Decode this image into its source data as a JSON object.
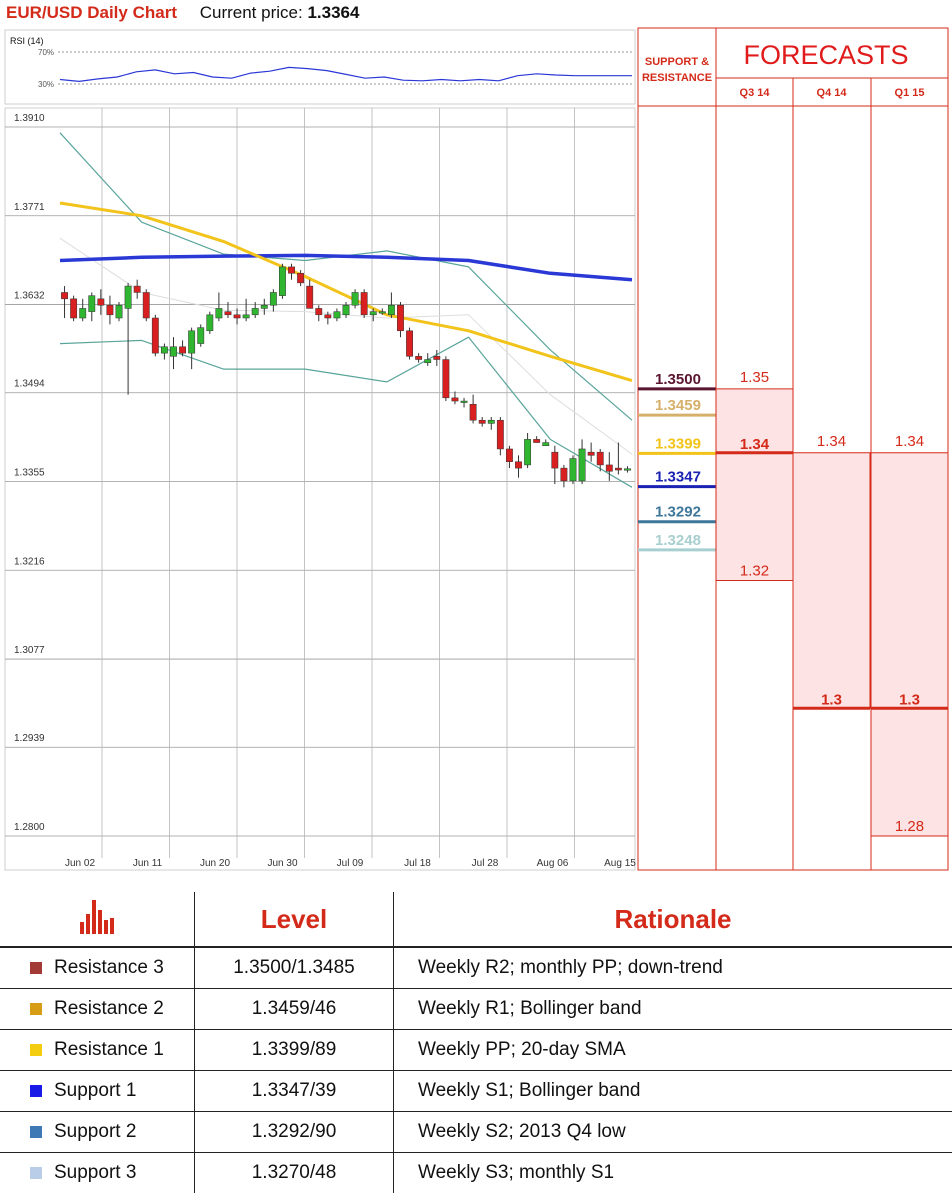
{
  "header": {
    "title": "EUR/USD Daily Chart",
    "current_label": "Current price:",
    "current_value": "1.3364"
  },
  "rsi": {
    "label": "RSI (14)",
    "upper_label": "70%",
    "lower_label": "30%"
  },
  "chart_data": {
    "type": "candlestick",
    "title": "EUR/USD Daily Chart",
    "y_ticks": [
      "1.3910",
      "1.3771",
      "1.3632",
      "1.3494",
      "1.3355",
      "1.3216",
      "1.3077",
      "1.2939",
      "1.2800"
    ],
    "ylim": [
      1.28,
      1.391
    ],
    "x_ticks": [
      "Jun 02",
      "Jun 11",
      "Jun 20",
      "Jun 30",
      "Jul 09",
      "Jul 18",
      "Jul 28",
      "Aug 06",
      "Aug 15"
    ],
    "candles": [
      [
        1.364,
        1.365,
        1.36,
        1.363
      ],
      [
        1.363,
        1.3635,
        1.3595,
        1.36
      ],
      [
        1.36,
        1.363,
        1.3595,
        1.3615
      ],
      [
        1.361,
        1.364,
        1.3595,
        1.3635
      ],
      [
        1.363,
        1.3645,
        1.3605,
        1.362
      ],
      [
        1.362,
        1.3635,
        1.359,
        1.3605
      ],
      [
        1.36,
        1.3625,
        1.3595,
        1.362
      ],
      [
        1.3615,
        1.3655,
        1.348,
        1.365
      ],
      [
        1.365,
        1.366,
        1.363,
        1.364
      ],
      [
        1.364,
        1.3645,
        1.3595,
        1.36
      ],
      [
        1.36,
        1.3605,
        1.354,
        1.3545
      ],
      [
        1.3545,
        1.356,
        1.3535,
        1.3555
      ],
      [
        1.354,
        1.357,
        1.352,
        1.3555
      ],
      [
        1.3555,
        1.3565,
        1.354,
        1.3545
      ],
      [
        1.3545,
        1.3585,
        1.352,
        1.358
      ],
      [
        1.356,
        1.359,
        1.3555,
        1.3585
      ],
      [
        1.358,
        1.361,
        1.3575,
        1.3605
      ],
      [
        1.36,
        1.364,
        1.3595,
        1.3615
      ],
      [
        1.361,
        1.3625,
        1.36,
        1.3605
      ],
      [
        1.3605,
        1.3615,
        1.359,
        1.36
      ],
      [
        1.36,
        1.363,
        1.3595,
        1.3605
      ],
      [
        1.3605,
        1.3625,
        1.36,
        1.3615
      ],
      [
        1.3615,
        1.363,
        1.3605,
        1.362
      ],
      [
        1.362,
        1.3645,
        1.361,
        1.364
      ],
      [
        1.3635,
        1.3685,
        1.363,
        1.368
      ],
      [
        1.368,
        1.3685,
        1.366,
        1.367
      ],
      [
        1.367,
        1.3675,
        1.365,
        1.3655
      ],
      [
        1.365,
        1.366,
        1.3615,
        1.3615
      ],
      [
        1.3615,
        1.362,
        1.3595,
        1.3605
      ],
      [
        1.3605,
        1.361,
        1.359,
        1.36
      ],
      [
        1.36,
        1.3615,
        1.3595,
        1.361
      ],
      [
        1.3605,
        1.3625,
        1.36,
        1.362
      ],
      [
        1.362,
        1.3645,
        1.3615,
        1.364
      ],
      [
        1.364,
        1.3645,
        1.36,
        1.3605
      ],
      [
        1.3605,
        1.3615,
        1.3595,
        1.361
      ],
      [
        1.361,
        1.3615,
        1.3605,
        1.361
      ],
      [
        1.3605,
        1.364,
        1.36,
        1.362
      ],
      [
        1.362,
        1.3625,
        1.357,
        1.358
      ],
      [
        1.358,
        1.3585,
        1.3535,
        1.354
      ],
      [
        1.354,
        1.3545,
        1.353,
        1.3535
      ],
      [
        1.353,
        1.3545,
        1.3525,
        1.3535
      ],
      [
        1.354,
        1.355,
        1.3525,
        1.3535
      ],
      [
        1.3535,
        1.354,
        1.347,
        1.3475
      ],
      [
        1.3475,
        1.3485,
        1.3465,
        1.347
      ],
      [
        1.347,
        1.3475,
        1.346,
        1.347
      ],
      [
        1.3465,
        1.348,
        1.3435,
        1.344
      ],
      [
        1.344,
        1.3445,
        1.343,
        1.3435
      ],
      [
        1.3435,
        1.3445,
        1.3425,
        1.344
      ],
      [
        1.344,
        1.3445,
        1.3385,
        1.3395
      ],
      [
        1.3395,
        1.34,
        1.3365,
        1.3375
      ],
      [
        1.3375,
        1.3385,
        1.335,
        1.3365
      ],
      [
        1.337,
        1.342,
        1.3365,
        1.341
      ],
      [
        1.341,
        1.3415,
        1.3405,
        1.3405
      ],
      [
        1.34,
        1.341,
        1.34,
        1.3405
      ],
      [
        1.339,
        1.34,
        1.334,
        1.3365
      ],
      [
        1.3365,
        1.337,
        1.3335,
        1.3345
      ],
      [
        1.3345,
        1.3385,
        1.334,
        1.338
      ],
      [
        1.3345,
        1.341,
        1.334,
        1.3395
      ],
      [
        1.339,
        1.3405,
        1.3375,
        1.3385
      ],
      [
        1.339,
        1.3395,
        1.336,
        1.337
      ],
      [
        1.337,
        1.339,
        1.3345,
        1.336
      ],
      [
        1.3365,
        1.3405,
        1.3355,
        1.3362
      ],
      [
        1.3362,
        1.3368,
        1.3358,
        1.3364
      ]
    ],
    "series": [
      {
        "color": "#f2c31a",
        "values": [
          1.378,
          1.376,
          1.372,
          1.3665,
          1.3605,
          1.358,
          1.354,
          1.3502
        ]
      },
      {
        "color": "#2a38d6",
        "values": [
          1.369,
          1.3695,
          1.3697,
          1.3698,
          1.3695,
          1.369,
          1.367,
          1.366
        ]
      },
      {
        "color": "#5aa59a",
        "values": [
          1.389,
          1.375,
          1.37,
          1.369,
          1.3705,
          1.368,
          1.355,
          1.344
        ]
      },
      {
        "color": "#5aa59a",
        "values": [
          1.356,
          1.3565,
          1.352,
          1.352,
          1.35,
          1.357,
          1.341,
          1.3335
        ]
      },
      {
        "color": "#dddddd",
        "values": [
          1.3725,
          1.364,
          1.3612,
          1.361,
          1.36,
          1.3605,
          1.348,
          1.3387
        ]
      }
    ],
    "rsi_values": [
      32,
      29,
      33,
      36,
      44,
      47,
      41,
      43,
      36,
      34,
      42,
      45,
      51,
      49,
      46,
      40,
      34,
      36,
      31,
      30,
      32,
      30,
      32,
      30,
      38,
      41,
      39,
      38,
      38,
      38,
      38
    ],
    "rsi_range": [
      0,
      100
    ]
  },
  "support_resistance": {
    "heading_line1": "SUPPORT &",
    "heading_line2": "RESISTANCE",
    "levels": [
      {
        "value": "1.3500",
        "color": "#5a1530"
      },
      {
        "value": "1.3459",
        "color": "#d6b06a"
      },
      {
        "value": "1.3399",
        "color": "#f2c31a"
      },
      {
        "value": "1.3347",
        "color": "#1a22b4"
      },
      {
        "value": "1.3292",
        "color": "#3e7799"
      },
      {
        "value": "1.3248",
        "color": "#a7cfcf"
      }
    ]
  },
  "forecasts": {
    "title": "FORECASTS",
    "columns": [
      {
        "label": "Q3 14",
        "high": "1.35",
        "mid": "1.34",
        "low": "1.32"
      },
      {
        "label": "Q4 14",
        "high": "1.34",
        "mid": "1.3",
        "low": ""
      },
      {
        "label": "Q1 15",
        "high": "1.34",
        "mid": "1.3",
        "low": "1.28"
      }
    ]
  },
  "table": {
    "level_header": "Level",
    "rationale_header": "Rationale",
    "rows": [
      {
        "name": "Resistance 3",
        "level": "1.3500/1.3485",
        "rationale": "Weekly R2; monthly PP; down-trend",
        "color": "#a33a35"
      },
      {
        "name": "Resistance 2",
        "level": "1.3459/46",
        "rationale": "Weekly R1; Bollinger band",
        "color": "#d69e14"
      },
      {
        "name": "Resistance 1",
        "level": "1.3399/89",
        "rationale": "Weekly PP; 20-day SMA",
        "color": "#f5cd10"
      },
      {
        "name": "Support 1",
        "level": "1.3347/39",
        "rationale": "Weekly S1; Bollinger band",
        "color": "#1a1ae6"
      },
      {
        "name": "Support 2",
        "level": "1.3292/90",
        "rationale": "Weekly S2; 2013 Q4 low",
        "color": "#3e78b5"
      },
      {
        "name": "Support 3",
        "level": "1.3270/48",
        "rationale": "Weekly S3; monthly S1",
        "color": "#b9cde8"
      }
    ]
  },
  "colors": {
    "accent_red": "#d42a1a",
    "bull": "#2fb52f",
    "bear": "#d92020",
    "forecast_fill": "#fde3e3"
  }
}
